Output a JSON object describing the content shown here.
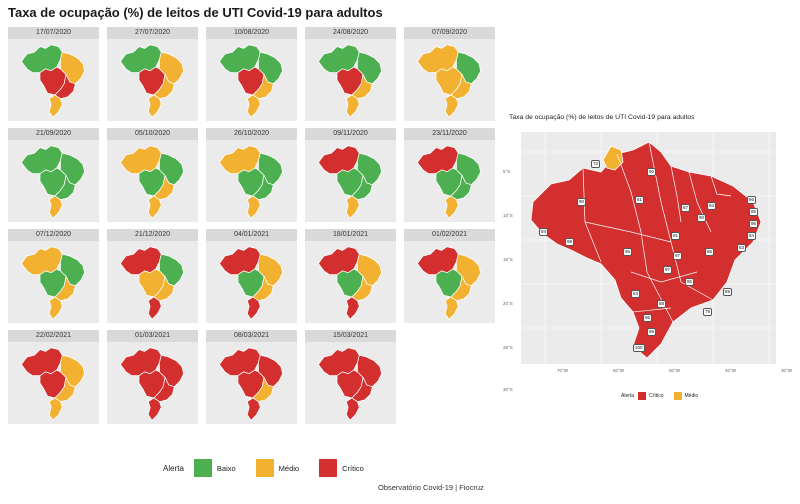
{
  "title": "Taxa de ocupação (%) de leitos de UTI Covid-19 para adultos",
  "colors": {
    "baixo": "#4caf50",
    "medio": "#f2b131",
    "critico": "#d32f2f",
    "panel_bg": "#ebebeb",
    "strip_bg": "#d9d9d9"
  },
  "panels": [
    {
      "date": "17/07/2020",
      "regions": [
        "baixo",
        "medio",
        "critico",
        "critico",
        "medio"
      ]
    },
    {
      "date": "27/07/2020",
      "regions": [
        "baixo",
        "medio",
        "critico",
        "medio",
        "medio"
      ]
    },
    {
      "date": "10/08/2020",
      "regions": [
        "baixo",
        "baixo",
        "critico",
        "medio",
        "medio"
      ]
    },
    {
      "date": "24/08/2020",
      "regions": [
        "baixo",
        "baixo",
        "critico",
        "medio",
        "medio"
      ]
    },
    {
      "date": "07/09/2020",
      "regions": [
        "medio",
        "baixo",
        "medio",
        "medio",
        "medio"
      ]
    },
    {
      "date": "21/09/2020",
      "regions": [
        "baixo",
        "baixo",
        "baixo",
        "baixo",
        "medio"
      ]
    },
    {
      "date": "05/10/2020",
      "regions": [
        "medio",
        "baixo",
        "baixo",
        "medio",
        "medio"
      ]
    },
    {
      "date": "26/10/2020",
      "regions": [
        "medio",
        "baixo",
        "baixo",
        "baixo",
        "medio"
      ]
    },
    {
      "date": "09/11/2020",
      "regions": [
        "critico",
        "baixo",
        "baixo",
        "baixo",
        "medio"
      ]
    },
    {
      "date": "23/11/2020",
      "regions": [
        "critico",
        "baixo",
        "baixo",
        "baixo",
        "medio"
      ]
    },
    {
      "date": "07/12/2020",
      "regions": [
        "medio",
        "baixo",
        "baixo",
        "medio",
        "medio"
      ]
    },
    {
      "date": "21/12/2020",
      "regions": [
        "critico",
        "baixo",
        "medio",
        "medio",
        "critico"
      ]
    },
    {
      "date": "04/01/2021",
      "regions": [
        "critico",
        "medio",
        "baixo",
        "medio",
        "critico"
      ]
    },
    {
      "date": "18/01/2021",
      "regions": [
        "critico",
        "medio",
        "baixo",
        "medio",
        "critico"
      ]
    },
    {
      "date": "01/02/2021",
      "regions": [
        "critico",
        "medio",
        "baixo",
        "medio",
        "medio"
      ]
    },
    {
      "date": "22/02/2021",
      "regions": [
        "critico",
        "medio",
        "critico",
        "medio",
        "medio"
      ]
    },
    {
      "date": "01/03/2021",
      "regions": [
        "critico",
        "critico",
        "critico",
        "critico",
        "critico"
      ]
    },
    {
      "date": "08/03/2021",
      "regions": [
        "critico",
        "critico",
        "critico",
        "medio",
        "critico"
      ]
    },
    {
      "date": "15/03/2021",
      "regions": [
        "critico",
        "critico",
        "critico",
        "critico",
        "critico"
      ]
    }
  ],
  "legend": {
    "title": "Alerta",
    "items": [
      {
        "label": "Baixo",
        "color": "#4caf50"
      },
      {
        "label": "Médio",
        "color": "#f2b131"
      },
      {
        "label": "Crítico",
        "color": "#d32f2f"
      }
    ]
  },
  "footer": "Observatório Covid-19 | Fiocruz",
  "detail_map": {
    "title": "Taxa de ocupação (%) de leitos de UTI Covid-19 para adultos",
    "y_ticks": [
      "5°S",
      "10°S",
      "15°S",
      "20°S",
      "25°S",
      "30°S"
    ],
    "x_ticks": [
      "70°W",
      "60°W",
      "50°W",
      "40°W",
      "30°W"
    ],
    "legend_title": "Alerta",
    "legend_items": [
      {
        "label": "Crítico",
        "color": "#d32f2f"
      },
      {
        "label": "Médio",
        "color": "#f2b131"
      }
    ],
    "state_values": [
      {
        "state": "RR",
        "value": "72",
        "level": "medio"
      },
      {
        "state": "AP",
        "value": "90",
        "level": "critico"
      },
      {
        "state": "AM",
        "value": "90",
        "level": "critico"
      },
      {
        "state": "PA",
        "value": "81",
        "level": "critico"
      },
      {
        "state": "MA",
        "value": "87",
        "level": "critico"
      },
      {
        "state": "CE",
        "value": "94",
        "level": "critico"
      },
      {
        "state": "RN",
        "value": "96",
        "level": "critico"
      },
      {
        "state": "PB",
        "value": "85",
        "level": "critico"
      },
      {
        "state": "PE",
        "value": "96",
        "level": "critico"
      },
      {
        "state": "AL",
        "value": "84",
        "level": "critico"
      },
      {
        "state": "SE",
        "value": "83",
        "level": "critico"
      },
      {
        "state": "PI",
        "value": "90",
        "level": "critico"
      },
      {
        "state": "AC",
        "value": "94",
        "level": "critico"
      },
      {
        "state": "RO",
        "value": "98",
        "level": "critico"
      },
      {
        "state": "MT",
        "value": "95",
        "level": "critico"
      },
      {
        "state": "TO",
        "value": "91",
        "level": "critico"
      },
      {
        "state": "BA",
        "value": "86",
        "level": "critico"
      },
      {
        "state": "DF",
        "value": "97",
        "level": "critico"
      },
      {
        "state": "GO",
        "value": "97",
        "level": "critico"
      },
      {
        "state": "MG",
        "value": "85",
        "level": "critico"
      },
      {
        "state": "ES",
        "value": "89",
        "level": "critico"
      },
      {
        "state": "MS",
        "value": "93",
        "level": "critico"
      },
      {
        "state": "SP",
        "value": "88",
        "level": "critico"
      },
      {
        "state": "RJ",
        "value": "79",
        "level": "medio"
      },
      {
        "state": "PR",
        "value": "96",
        "level": "critico"
      },
      {
        "state": "SC",
        "value": "99",
        "level": "critico"
      },
      {
        "state": "RS",
        "value": "100",
        "level": "critico"
      }
    ]
  }
}
